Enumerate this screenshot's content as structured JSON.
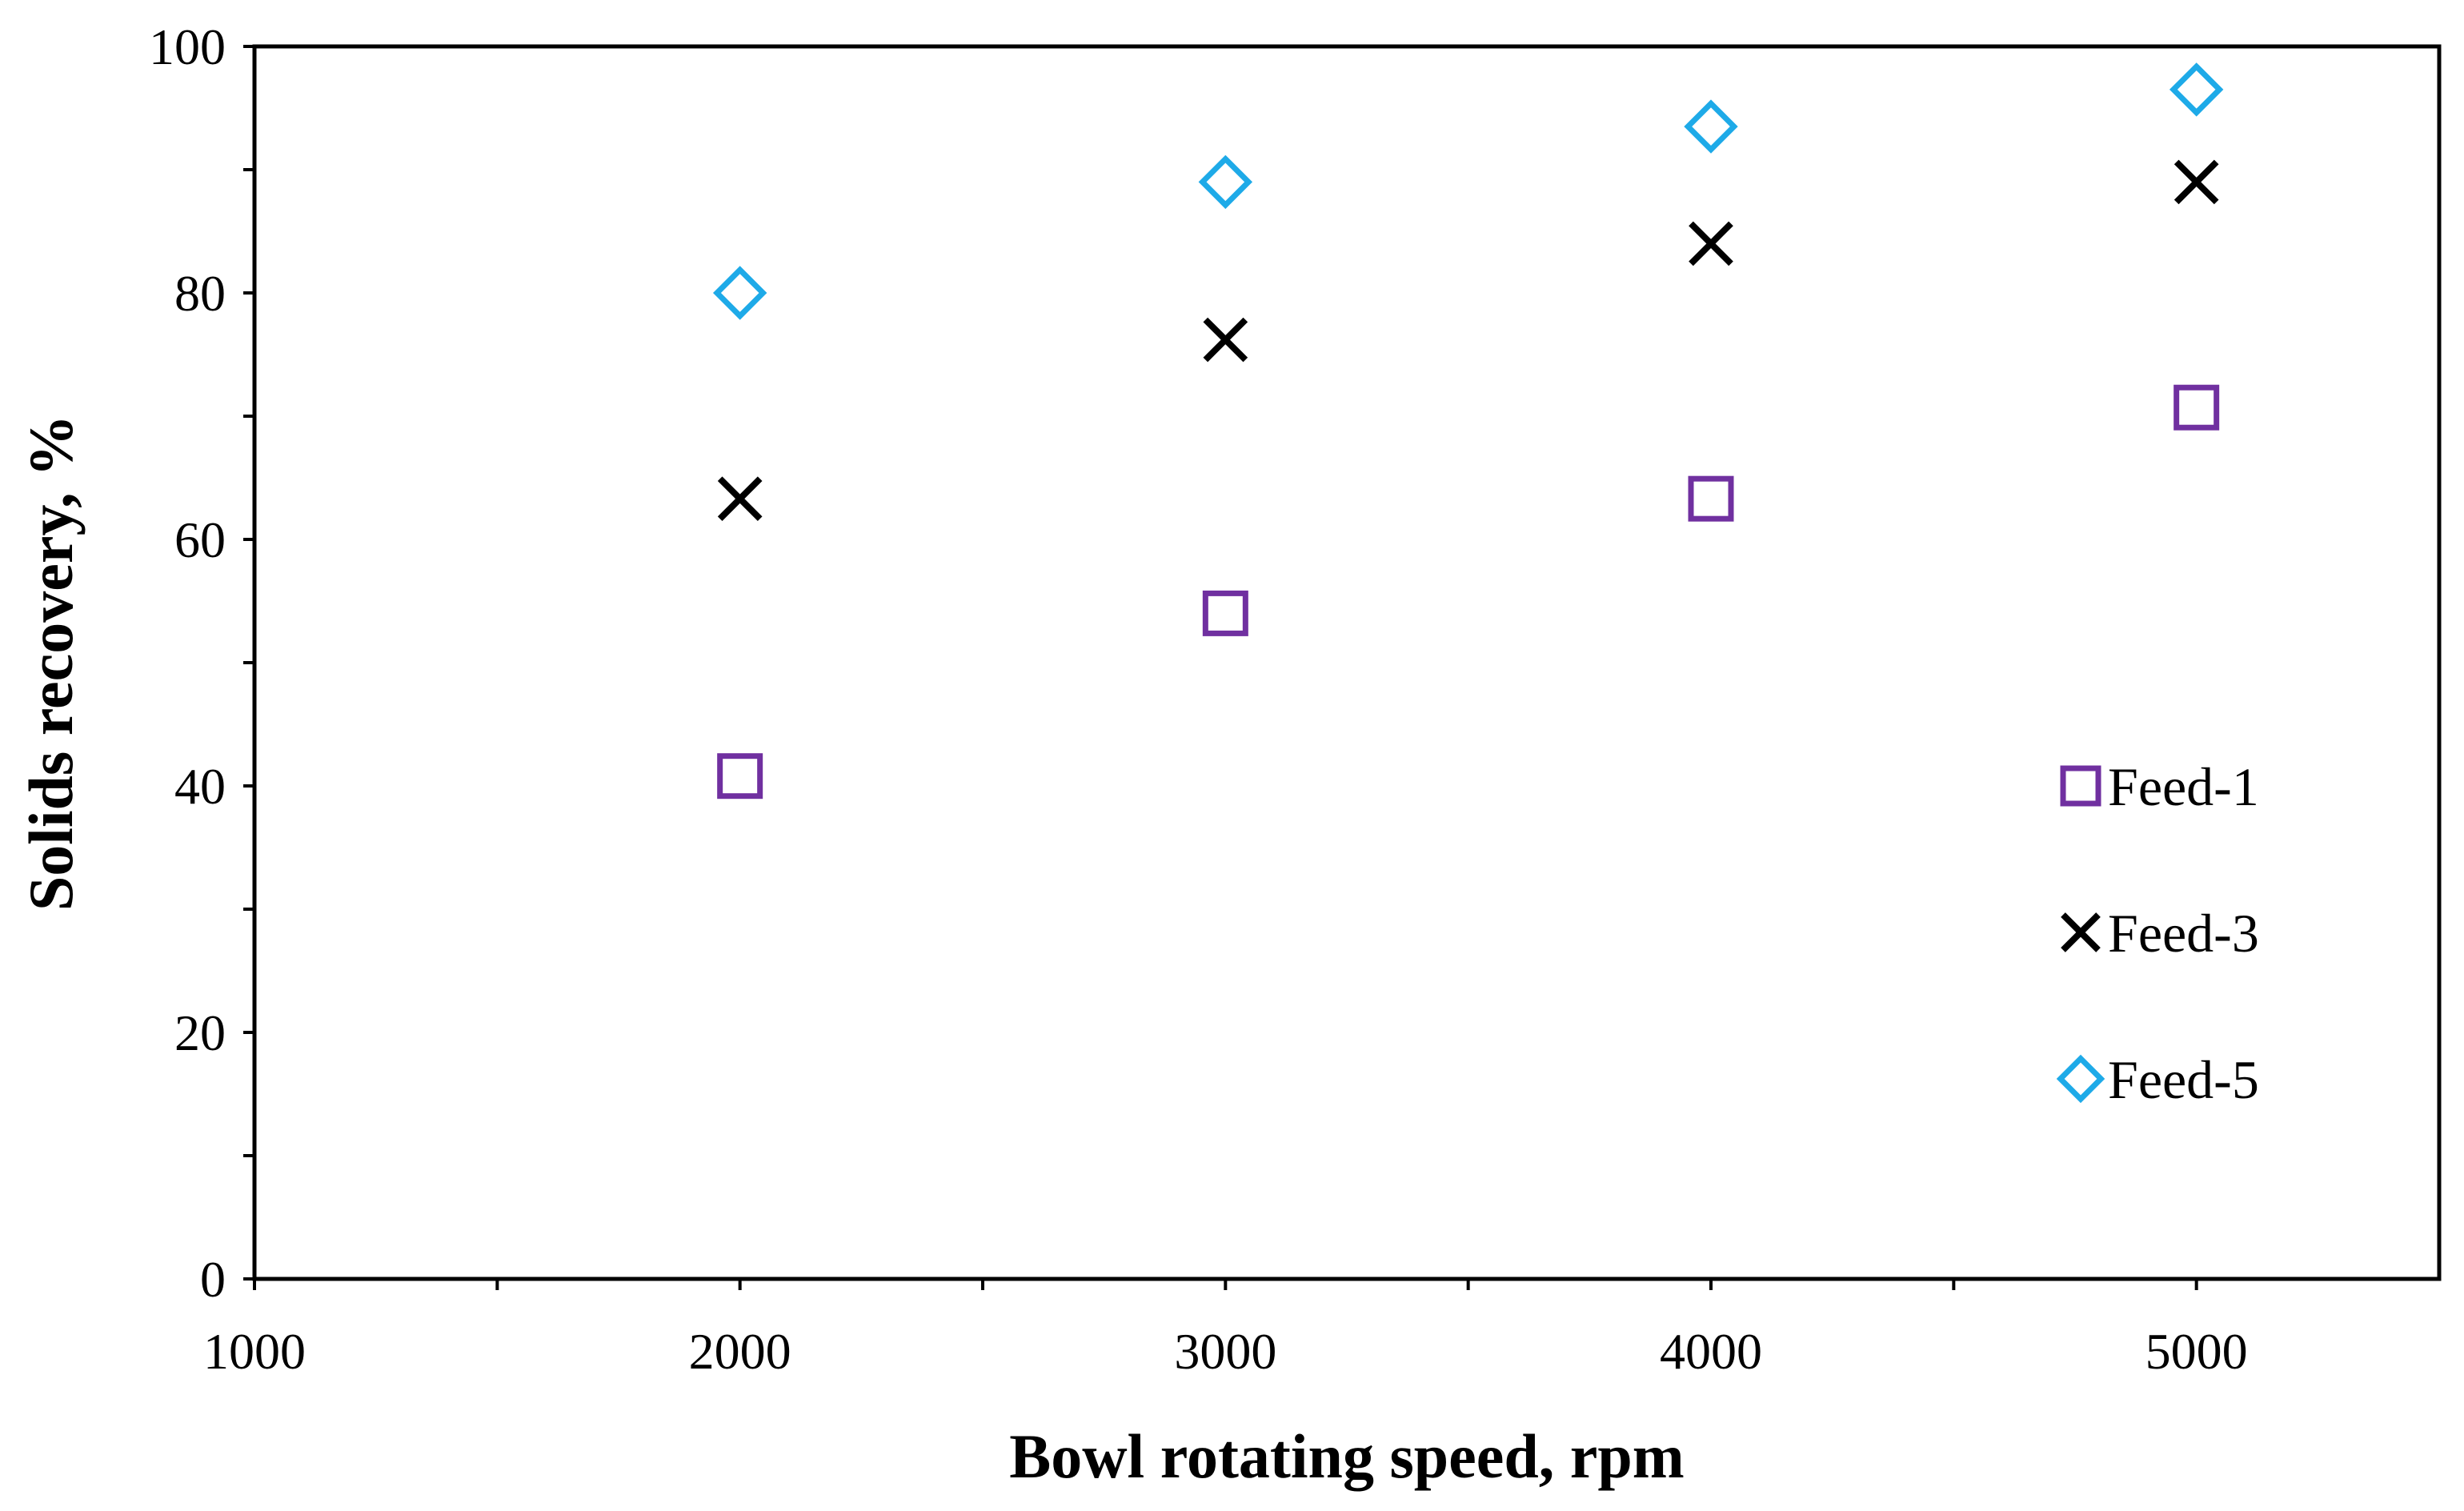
{
  "chart_data": {
    "type": "scatter",
    "title": "",
    "xlabel": "Bowl rotating speed, rpm",
    "ylabel": "Solids recovery, %",
    "xlim": [
      1000,
      5500
    ],
    "ylim": [
      0,
      100
    ],
    "x_ticks": [
      1000,
      2000,
      3000,
      4000,
      5000
    ],
    "x_tick_labels": [
      "1000",
      "2000",
      "3000",
      "4000",
      "5000"
    ],
    "x_minor_ticks": [
      1500,
      2500,
      3500,
      4500
    ],
    "y_ticks": [
      0,
      20,
      40,
      60,
      80,
      100
    ],
    "y_tick_labels": [
      "0",
      "20",
      "40",
      "60",
      "80",
      "100"
    ],
    "y_minor_ticks": [
      10,
      30,
      50,
      70,
      90
    ],
    "grid": false,
    "legend_position": "right",
    "series": [
      {
        "name": "Feed-1",
        "marker": "square",
        "color": "#7030A0",
        "x": [
          2000,
          3000,
          4000,
          5000
        ],
        "y": [
          40.8,
          54.0,
          63.3,
          70.7
        ]
      },
      {
        "name": "Feed-3",
        "marker": "x",
        "color": "#000000",
        "x": [
          2000,
          3000,
          4000,
          5000
        ],
        "y": [
          63.3,
          76.2,
          84.0,
          89.0
        ]
      },
      {
        "name": "Feed-5",
        "marker": "diamond",
        "color": "#1EAAE8",
        "x": [
          2000,
          3000,
          4000,
          5000
        ],
        "y": [
          80.0,
          89.0,
          93.5,
          96.5
        ]
      }
    ]
  }
}
